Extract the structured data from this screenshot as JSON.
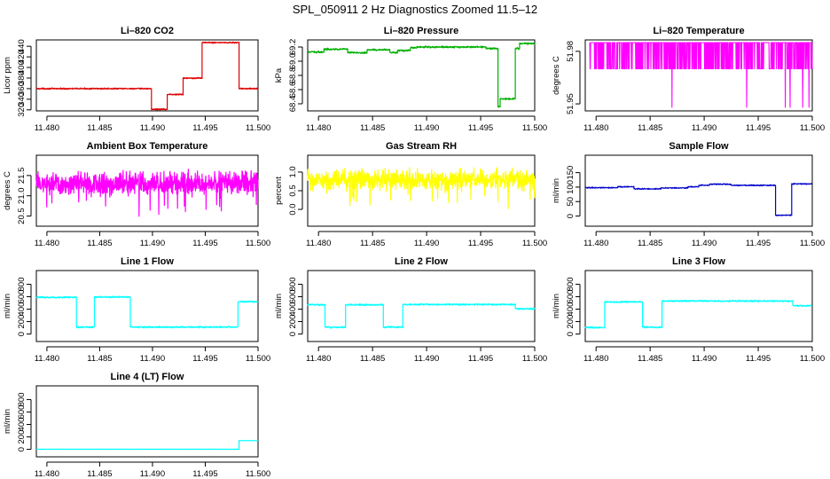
{
  "title": "SPL_050911  2 Hz Diagnostics Zoomed 11.5–12",
  "colors": {
    "red": "#e00000",
    "green": "#00b000",
    "magenta": "#ff00ff",
    "yellow": "#ffff00",
    "blue": "#0000cc",
    "cyan": "#00ffff"
  },
  "chart_data": [
    {
      "id": "co2",
      "type": "line",
      "title": "Li–820 CO2",
      "ylabel": "Licor ppm",
      "xlim": [
        11.479,
        11.5
      ],
      "ylim": [
        318,
        452
      ],
      "xticks": [
        "11.480",
        "11.485",
        "11.490",
        "11.495",
        "11.500"
      ],
      "yticks": [
        "320",
        "340",
        "360",
        "380",
        "400",
        "420",
        "440"
      ],
      "color": "red",
      "noise": 1,
      "spiky": false,
      "segments": [
        [
          11.479,
          11.4899,
          360
        ],
        [
          11.4899,
          11.4914,
          321
        ],
        [
          11.4914,
          11.4929,
          349
        ],
        [
          11.4929,
          11.4947,
          380
        ],
        [
          11.4947,
          11.4982,
          447
        ],
        [
          11.4982,
          11.5,
          360
        ]
      ]
    },
    {
      "id": "pressure",
      "type": "line",
      "title": "Li–820 Pressure",
      "ylabel": "kPa",
      "xlim": [
        11.479,
        11.5
      ],
      "ylim": [
        68.3,
        69.3
      ],
      "xticks": [
        "11.480",
        "11.485",
        "11.490",
        "11.495",
        "11.500"
      ],
      "yticks": [
        "68.4",
        "68.6",
        "68.8",
        "69.0",
        "69.2"
      ],
      "color": "green",
      "noise": 0.01,
      "spiky": false,
      "segments": [
        [
          11.479,
          11.4805,
          69.13
        ],
        [
          11.4805,
          11.4827,
          69.17
        ],
        [
          11.4827,
          11.4845,
          69.12
        ],
        [
          11.4845,
          11.4866,
          69.16
        ],
        [
          11.4866,
          11.4873,
          69.12
        ],
        [
          11.4873,
          11.4885,
          69.15
        ],
        [
          11.4885,
          11.4891,
          69.19
        ],
        [
          11.4891,
          11.4955,
          69.2
        ],
        [
          11.4955,
          11.4966,
          69.18
        ],
        [
          11.4966,
          11.4968,
          68.36
        ],
        [
          11.4968,
          11.4982,
          68.47
        ],
        [
          11.4982,
          11.4986,
          69.18
        ],
        [
          11.4986,
          11.5,
          69.25
        ]
      ]
    },
    {
      "id": "temperature",
      "type": "line",
      "title": "Li–820 Temperature",
      "ylabel": "degrees C",
      "xlim": [
        11.479,
        11.5
      ],
      "ylim": [
        51.946,
        51.9865
      ],
      "xticks": [
        "11.480",
        "11.485",
        "11.490",
        "11.495",
        "11.500"
      ],
      "yticks": [
        "51.95",
        "51.98"
      ],
      "color": "magenta",
      "noise": 0,
      "spiky": true,
      "levels": [
        51.97,
        51.985,
        51.948
      ],
      "segments": []
    },
    {
      "id": "ambient",
      "type": "line",
      "title": "Ambient Box Temperature",
      "ylabel": "degrees C",
      "xlim": [
        11.479,
        11.5
      ],
      "ylim": [
        20.25,
        22.0
      ],
      "xticks": [
        "11.480",
        "11.485",
        "11.490",
        "11.495",
        "11.500"
      ],
      "yticks": [
        "20.5",
        "21.0",
        "21.5"
      ],
      "color": "magenta",
      "noise": 0.24,
      "spiky": false,
      "segments": [
        [
          11.479,
          11.5,
          21.3
        ]
      ]
    },
    {
      "id": "rh",
      "type": "line",
      "title": "Gas Stream RH",
      "ylabel": "percent",
      "xlim": [
        11.479,
        11.5
      ],
      "ylim": [
        -0.45,
        1.45
      ],
      "xticks": [
        "11.480",
        "11.485",
        "11.490",
        "11.495",
        "11.500"
      ],
      "yticks": [
        "0.0",
        "0.5",
        "1.0"
      ],
      "color": "yellow",
      "noise": 0.22,
      "spiky": false,
      "segments": [
        [
          11.479,
          11.5,
          0.8
        ]
      ]
    },
    {
      "id": "sample",
      "type": "line",
      "title": "Sample Flow",
      "ylabel": "ml/min",
      "xlim": [
        11.479,
        11.5
      ],
      "ylim": [
        -35,
        210
      ],
      "xticks": [
        "11.480",
        "11.485",
        "11.490",
        "11.495",
        "11.500"
      ],
      "yticks": [
        "0",
        "50",
        "100",
        "150"
      ],
      "color": "blue",
      "noise": 1.5,
      "spiky": false,
      "segments": [
        [
          11.479,
          11.482,
          98
        ],
        [
          11.482,
          11.4835,
          101
        ],
        [
          11.4835,
          11.486,
          94
        ],
        [
          11.486,
          11.4885,
          97
        ],
        [
          11.4885,
          11.4895,
          101
        ],
        [
          11.4895,
          11.4905,
          106
        ],
        [
          11.4905,
          11.4925,
          110
        ],
        [
          11.4925,
          11.4966,
          106
        ],
        [
          11.4966,
          11.4981,
          3
        ],
        [
          11.4981,
          11.5,
          111
        ]
      ]
    },
    {
      "id": "line1",
      "type": "line",
      "title": "Line 1 Flow",
      "ylabel": "ml/min",
      "xlim": [
        11.479,
        11.5
      ],
      "ylim": [
        -120,
        1020
      ],
      "xticks": [
        "11.480",
        "11.485",
        "11.490",
        "11.495",
        "11.500"
      ],
      "yticks": [
        "0",
        "200",
        "400",
        "600",
        "800"
      ],
      "color": "cyan",
      "noise": 10,
      "spiky": false,
      "segments": [
        [
          11.479,
          11.4828,
          590
        ],
        [
          11.4828,
          11.4845,
          110
        ],
        [
          11.4845,
          11.4879,
          595
        ],
        [
          11.4879,
          11.4981,
          112
        ],
        [
          11.4981,
          11.5,
          520
        ]
      ]
    },
    {
      "id": "line2",
      "type": "line",
      "title": "Line 2 Flow",
      "ylabel": "ml/min",
      "xlim": [
        11.479,
        11.5
      ],
      "ylim": [
        -120,
        1020
      ],
      "xticks": [
        "11.480",
        "11.485",
        "11.490",
        "11.495",
        "11.500"
      ],
      "yticks": [
        "0",
        "200",
        "400",
        "600",
        "800"
      ],
      "color": "cyan",
      "noise": 10,
      "spiky": false,
      "segments": [
        [
          11.479,
          11.4806,
          470
        ],
        [
          11.4806,
          11.4825,
          110
        ],
        [
          11.4825,
          11.486,
          470
        ],
        [
          11.486,
          11.4878,
          112
        ],
        [
          11.4878,
          11.4982,
          475
        ],
        [
          11.4982,
          11.5,
          405
        ]
      ]
    },
    {
      "id": "line3",
      "type": "line",
      "title": "Line 3 Flow",
      "ylabel": "ml/min",
      "xlim": [
        11.479,
        11.5
      ],
      "ylim": [
        -120,
        1020
      ],
      "xticks": [
        "11.480",
        "11.485",
        "11.490",
        "11.495",
        "11.500"
      ],
      "yticks": [
        "0",
        "200",
        "400",
        "600",
        "800"
      ],
      "color": "cyan",
      "noise": 10,
      "spiky": false,
      "segments": [
        [
          11.479,
          11.4808,
          105
        ],
        [
          11.4808,
          11.4843,
          515
        ],
        [
          11.4843,
          11.4861,
          110
        ],
        [
          11.4861,
          11.4982,
          530
        ],
        [
          11.4982,
          11.5,
          455
        ]
      ]
    },
    {
      "id": "line4",
      "type": "line",
      "title": "Line 4 (LT) Flow",
      "ylabel": "ml/min",
      "xlim": [
        11.479,
        11.5
      ],
      "ylim": [
        -120,
        1020
      ],
      "xticks": [
        "11.480",
        "11.485",
        "11.490",
        "11.495",
        "11.500"
      ],
      "yticks": [
        "0",
        "200",
        "400",
        "600",
        "800"
      ],
      "color": "cyan",
      "noise": 0.5,
      "spiky": false,
      "segments": [
        [
          11.479,
          11.4982,
          2
        ],
        [
          11.4982,
          11.5,
          140
        ]
      ]
    }
  ]
}
